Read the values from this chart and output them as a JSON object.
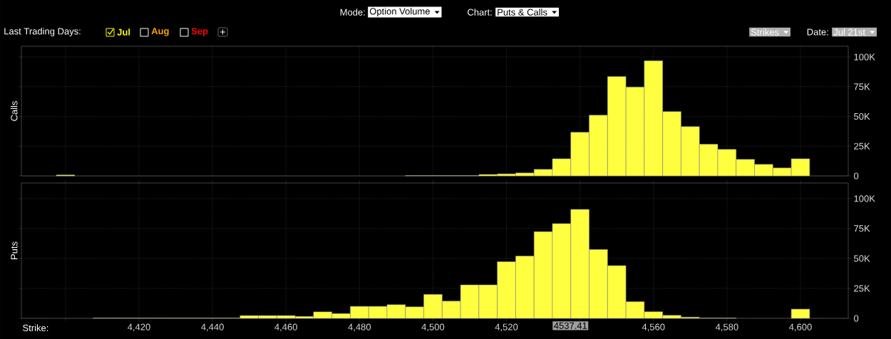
{
  "chart_data": [
    {
      "type": "histogram",
      "ylabel": "Calls",
      "bins": [
        4397.5,
        4402.5,
        4407.5,
        4412.5,
        4417.5,
        4422.5,
        4427.5,
        4432.5,
        4437.5,
        4442.5,
        4447.5,
        4452.5,
        4457.5,
        4462.5,
        4467.5,
        4472.5,
        4477.5,
        4482.5,
        4487.5,
        4492.5,
        4497.5,
        4502.5,
        4507.5,
        4512.5,
        4517.5,
        4522.5,
        4527.5,
        4532.5,
        4537.5,
        4542.5,
        4547.5,
        4552.5,
        4557.5,
        4562.5,
        4567.5,
        4572.5,
        4577.5,
        4582.5,
        4587.5,
        4592.5,
        4597.5,
        4602.5
      ],
      "values": [
        800,
        null,
        null,
        null,
        null,
        null,
        null,
        null,
        null,
        null,
        null,
        null,
        null,
        null,
        null,
        null,
        null,
        null,
        null,
        300,
        300,
        300,
        300,
        1200,
        1700,
        2500,
        5500,
        14400,
        36700,
        51100,
        83600,
        74700,
        96800,
        54100,
        41400,
        26600,
        22300,
        13900,
        9700,
        6700,
        14400
      ],
      "color": "#ffff40",
      "xlim": [
        4388,
        4613
      ],
      "ylim": [
        0,
        109000
      ],
      "xticks": [
        4400,
        4420,
        4440,
        4460,
        4480,
        4500,
        4520,
        4540,
        4560,
        4580,
        4600
      ],
      "yticks": [
        0,
        {
          "value": 25000,
          "label": "25K"
        },
        {
          "value": 50000,
          "label": "50K"
        },
        {
          "value": 75000,
          "label": "75K"
        },
        {
          "value": 100000,
          "label": "100K"
        }
      ],
      "tick_labels": "y",
      "grid": true,
      "annotations": [
        "Mode:",
        "Option Volume",
        "Chart:",
        "Puts & Calls",
        "Last Trading Days:",
        "Jul",
        "Aug",
        "Sep",
        "Strikes",
        "Date:",
        "Jul 21st"
      ]
    },
    {
      "type": "histogram",
      "ylabel": "Puts",
      "xlabel": "Strike:",
      "bins": [
        4397.5,
        4402.5,
        4407.5,
        4412.5,
        4417.5,
        4422.5,
        4427.5,
        4432.5,
        4437.5,
        4442.5,
        4447.5,
        4452.5,
        4457.5,
        4462.5,
        4467.5,
        4472.5,
        4477.5,
        4482.5,
        4487.5,
        4492.5,
        4497.5,
        4502.5,
        4507.5,
        4512.5,
        4517.5,
        4522.5,
        4527.5,
        4532.5,
        4537.5,
        4542.5,
        4547.5,
        4552.5,
        4557.5,
        4562.5,
        4567.5,
        4572.5,
        4577.5,
        4582.5,
        4587.5,
        4592.5,
        4597.5,
        4602.5
      ],
      "values": [
        null,
        null,
        300,
        300,
        300,
        300,
        300,
        300,
        300,
        300,
        2300,
        2300,
        2300,
        1600,
        5400,
        4000,
        10000,
        10000,
        11400,
        9600,
        20000,
        14400,
        27900,
        27900,
        47300,
        52000,
        72400,
        79100,
        91000,
        57500,
        44000,
        13900,
        5500,
        2500,
        1000,
        300,
        300,
        null,
        null,
        null,
        7700
      ],
      "color": "#ffff40",
      "xlim": [
        4388,
        4613
      ],
      "ylim": [
        0,
        113000
      ],
      "xticks": [
        {
          "value": 4400,
          "label": null
        },
        {
          "value": 4420,
          "label": "4,420"
        },
        {
          "value": 4440,
          "label": "4,440"
        },
        {
          "value": 4460,
          "label": "4,460"
        },
        {
          "value": 4480,
          "label": "4,480"
        },
        {
          "value": 4500,
          "label": "4,500"
        },
        {
          "value": 4520,
          "label": "4,520"
        },
        {
          "value": 4540,
          "label": null
        },
        {
          "value": 4560,
          "label": "4,560"
        },
        {
          "value": 4580,
          "label": "4,580"
        },
        {
          "value": 4600,
          "label": "4,600"
        }
      ],
      "yticks": [
        0,
        {
          "value": 25000,
          "label": "25K"
        },
        {
          "value": 50000,
          "label": "50K"
        },
        {
          "value": 75000,
          "label": "75K"
        },
        {
          "value": 100000,
          "label": "100K"
        }
      ],
      "grid": true,
      "annotations": [
        {
          "text": "4537.41",
          "x": 4537.41,
          "y": 0
        }
      ]
    }
  ]
}
